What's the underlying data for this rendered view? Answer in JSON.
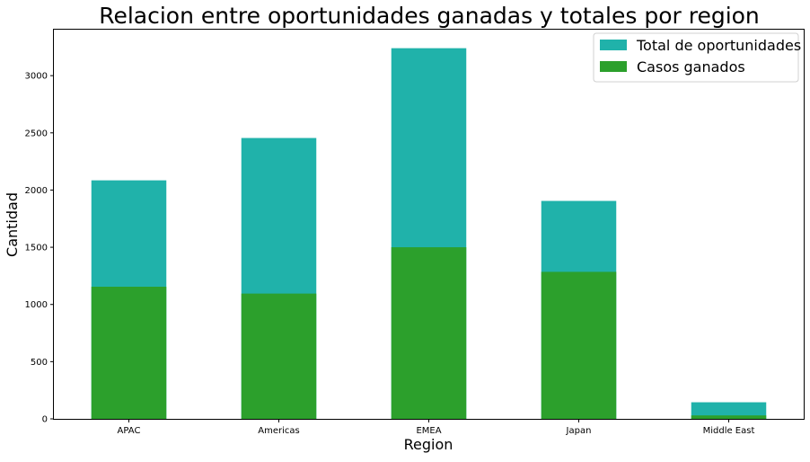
{
  "chart_data": {
    "type": "bar",
    "title": "Relacion entre oportunidades ganadas y totales por region",
    "xlabel": "Region",
    "ylabel": "Cantidad",
    "categories": [
      "APAC",
      "Americas",
      "EMEA",
      "Japan",
      "Middle East"
    ],
    "series": [
      {
        "name": "Total de oportunidades",
        "values": [
          2085,
          2455,
          3240,
          1905,
          145
        ],
        "color": "#20b2aa"
      },
      {
        "name": "Casos ganados",
        "values": [
          1155,
          1095,
          1500,
          1285,
          30
        ],
        "color": "#2ca02c"
      }
    ],
    "ylim": [
      0,
      3402
    ],
    "yticks": [
      0,
      500,
      1000,
      1500,
      2000,
      2500,
      3000
    ],
    "grid": false,
    "legend_position": "top-right"
  }
}
